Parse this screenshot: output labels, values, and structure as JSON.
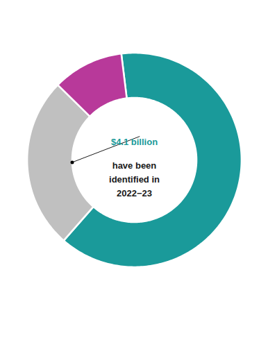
{
  "chart_data": {
    "type": "donut",
    "values": [
      7.1,
      2.9,
      1.2
    ],
    "colors": [
      "#1a9a9a",
      "#c0c0c0",
      "#b8399a"
    ],
    "annotations": [
      {
        "text": "$4.1 billion",
        "color": "#1a9a9a"
      },
      {
        "text": "have been\nidentified in\n2022−23",
        "color": "#1a1a1a"
      }
    ]
  }
}
